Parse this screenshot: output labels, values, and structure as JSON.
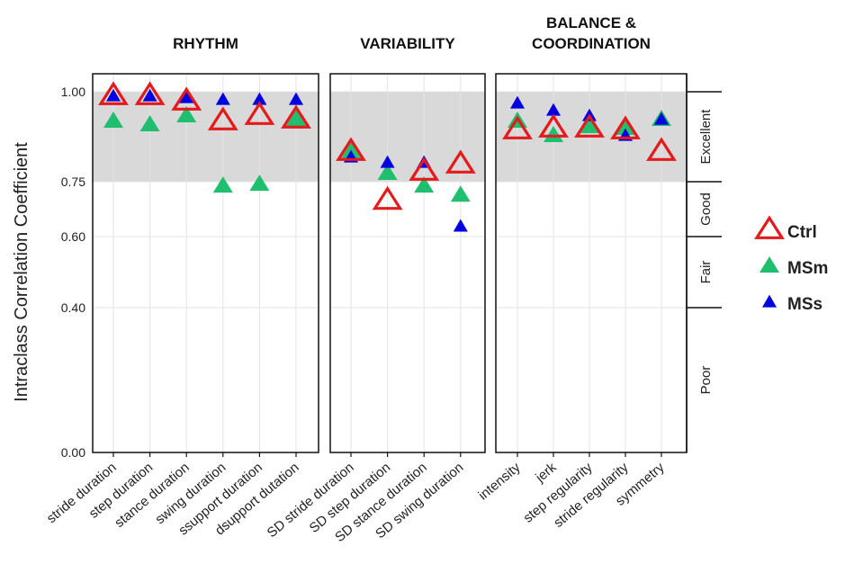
{
  "chart_data": {
    "type": "scatter",
    "ylabel": "Intraclass Correlation Coefficient",
    "ylim": [
      0,
      1
    ],
    "y_ticks": [
      {
        "value": 1.0,
        "label": "1.00"
      },
      {
        "value": 0.75,
        "label": "0.75"
      },
      {
        "value": 0.6,
        "label": "0.60"
      },
      {
        "value": 0.4,
        "label": "0.40"
      },
      {
        "value": 0.0,
        "label": "0.00"
      }
    ],
    "shaded_range": [
      0.75,
      1.0
    ],
    "grid": true,
    "legend_position": "right",
    "reliability_bands": [
      {
        "label": "Excellent",
        "from": 0.75,
        "to": 1.0
      },
      {
        "label": "Good",
        "from": 0.6,
        "to": 0.75
      },
      {
        "label": "Fair",
        "from": 0.4,
        "to": 0.6
      },
      {
        "label": "Poor",
        "from": 0.0,
        "to": 0.4
      }
    ],
    "series": [
      {
        "name": "Ctrl",
        "color": "#e41a1c",
        "marker": "open-triangle"
      },
      {
        "name": "MSm",
        "color": "#1fbf6f",
        "marker": "filled-triangle"
      },
      {
        "name": "MSs",
        "color": "#0000e0",
        "marker": "filled-triangle-small"
      }
    ],
    "panels": [
      {
        "title_lines": [
          "RHYTHM"
        ],
        "categories": [
          "stride duration",
          "step duration",
          "stance duration",
          "swing duration",
          "ssupport duration",
          "dsupport dutation"
        ],
        "values": {
          "Ctrl": [
            0.985,
            0.985,
            0.97,
            0.915,
            0.93,
            0.92
          ],
          "MSm": [
            0.915,
            0.905,
            0.93,
            0.735,
            0.74,
            0.92
          ],
          "MSs": [
            0.985,
            0.985,
            0.98,
            0.975,
            0.975,
            0.975
          ]
        }
      },
      {
        "title_lines": [
          "VARIABILITY"
        ],
        "categories": [
          "SD stride duration",
          "SD step duration",
          "SD stance duration",
          "SD swing duration"
        ],
        "values": {
          "Ctrl": [
            0.83,
            0.695,
            0.775,
            0.795
          ],
          "MSm": [
            0.83,
            0.77,
            0.735,
            0.71
          ],
          "MSs": [
            0.815,
            0.8,
            0.8,
            0.625
          ]
        }
      },
      {
        "title_lines": [
          "BALANCE &",
          "COORDINATION"
        ],
        "categories": [
          "intensity",
          "jerk",
          "step regularity",
          "stride regularity",
          "symmetry"
        ],
        "values": {
          "Ctrl": [
            0.89,
            0.895,
            0.895,
            0.89,
            0.83
          ],
          "MSm": [
            0.915,
            0.875,
            0.9,
            0.895,
            0.92
          ],
          "MSs": [
            0.965,
            0.945,
            0.93,
            0.875,
            0.92
          ]
        }
      }
    ]
  }
}
